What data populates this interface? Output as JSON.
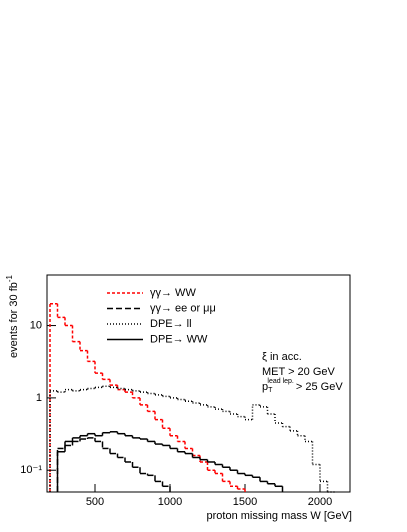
{
  "chart_data": {
    "type": "histogram",
    "xlabel": "proton missing mass W [GeV]",
    "ylabel": "events for 30 fb",
    "ylabel_sup": "-1",
    "bins": [
      200,
      250,
      300,
      350,
      400,
      450,
      500,
      550,
      600,
      650,
      700,
      750,
      800,
      850,
      900,
      950,
      1000,
      1050,
      1100,
      1150,
      1200,
      1250,
      1300,
      1350,
      1400,
      1450,
      1500,
      1550,
      1600,
      1650,
      1700,
      1750,
      1800,
      1850,
      1900,
      1950,
      2000,
      2050,
      2100
    ],
    "series": [
      {
        "name": "γγ→ WW",
        "color": "#ff0000",
        "dash": "3,2",
        "values": [
          20,
          13,
          10,
          6,
          4.5,
          3.2,
          2.2,
          1.8,
          1.5,
          1.3,
          1.2,
          1.0,
          0.8,
          0.65,
          0.5,
          0.38,
          0.3,
          0.25,
          0.2,
          0.16,
          0.13,
          0.1,
          0.09,
          0.07,
          0.06,
          0.055,
          null,
          null,
          null,
          null,
          null,
          null,
          null,
          null,
          null,
          null,
          null,
          null
        ]
      },
      {
        "name": "γγ→ ee or μμ",
        "color": "#000000",
        "dash": "6,3",
        "values": [
          null,
          0.2,
          0.22,
          0.25,
          0.27,
          0.28,
          0.25,
          0.2,
          0.17,
          0.15,
          0.13,
          0.11,
          0.09,
          0.085,
          0.07,
          0.06,
          null,
          null,
          null,
          null,
          null,
          null,
          null,
          null,
          null,
          null,
          null,
          null,
          null,
          null,
          null,
          null,
          null,
          null,
          null,
          null,
          null,
          null
        ]
      },
      {
        "name": "DPE→ ll",
        "color": "#000000",
        "dash": "1,2",
        "values": [
          1.25,
          1.2,
          1.3,
          1.25,
          1.3,
          1.35,
          1.4,
          1.45,
          1.4,
          1.35,
          1.3,
          1.25,
          1.2,
          1.15,
          1.1,
          1.05,
          1.0,
          0.95,
          0.9,
          0.85,
          0.8,
          0.75,
          0.7,
          0.65,
          0.6,
          0.55,
          0.5,
          0.8,
          0.75,
          0.6,
          0.45,
          0.4,
          0.35,
          0.3,
          0.25,
          0.12,
          0.07,
          0.05
        ]
      },
      {
        "name": "DPE→ WW",
        "color": "#000000",
        "dash": "none",
        "values": [
          null,
          0.18,
          0.25,
          0.28,
          0.3,
          0.32,
          0.3,
          0.33,
          0.34,
          0.32,
          0.3,
          0.28,
          0.27,
          0.25,
          0.23,
          0.22,
          0.2,
          0.18,
          0.17,
          0.15,
          0.14,
          0.13,
          0.12,
          0.11,
          0.1,
          0.09,
          0.085,
          0.08,
          0.07,
          0.065,
          0.06,
          null,
          null,
          null,
          null,
          null,
          null,
          null
        ]
      }
    ],
    "xlim": [
      180,
      2200
    ],
    "ylim": [
      0.05,
      50
    ],
    "log_y": true,
    "xticks": [
      500,
      1000,
      1500,
      2000
    ],
    "yticks": [
      {
        "value": 0.1,
        "label": "10⁻¹"
      },
      1,
      10
    ],
    "annotations": [
      "ξ in acc.",
      "MET > 20 GeV"
    ],
    "pt_cut": {
      "p": "p",
      "sub": "T",
      "sup": "lead lep.",
      "text": "> 25 GeV"
    }
  }
}
